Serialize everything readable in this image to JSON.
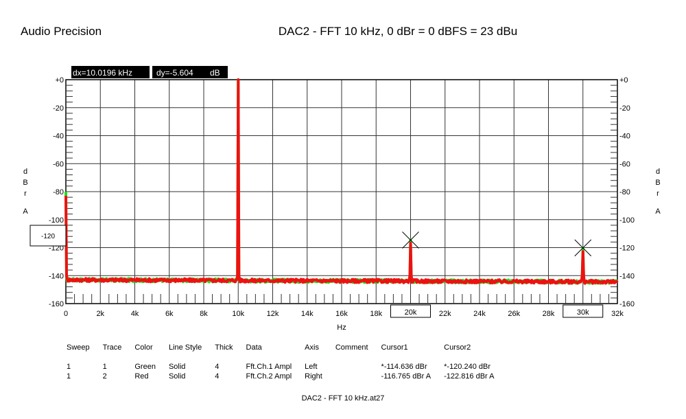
{
  "header": {
    "brand": "Audio Precision",
    "title": "DAC2 - FFT 10 kHz, 0 dBr = 0 dBFS = 23 dBu"
  },
  "readout": {
    "dx": "dx=10.0196 kHz",
    "dy": "dy=-5.604",
    "dy_unit": "dB"
  },
  "axes": {
    "left_unit": [
      "d",
      "B",
      "r"
    ],
    "left_weight": "A",
    "right_unit": [
      "d",
      "B",
      "r"
    ],
    "right_weight": "A",
    "xlabel": "Hz"
  },
  "chart_data": {
    "type": "line",
    "xlabel": "Hz",
    "ylabel": "dBr A",
    "xlim": [
      0,
      32000
    ],
    "ylim": [
      -160,
      0
    ],
    "x_ticks": [
      "0",
      "2k",
      "4k",
      "6k",
      "8k",
      "10k",
      "12k",
      "14k",
      "16k",
      "18k",
      "20k",
      "22k",
      "24k",
      "26k",
      "28k",
      "30k",
      "32k"
    ],
    "y_ticks_left": [
      "+0",
      "-20",
      "-40",
      "-60",
      "-80",
      "-100",
      "-120",
      "-140",
      "-160"
    ],
    "y_ticks_right": [
      "+0",
      "-20",
      "-40",
      "-60",
      "-80",
      "-100",
      "-120",
      "-140",
      "-160"
    ],
    "grid": true,
    "series": [
      {
        "name": "Ft.Ch.1 Ampl",
        "color": "#22dd22",
        "noise_floor": -143,
        "peaks": [
          {
            "x": 0,
            "y": -80
          },
          {
            "x": 10000,
            "y": 0
          },
          {
            "x": 20000,
            "y": -114.6
          },
          {
            "x": 30000,
            "y": -120.2
          }
        ]
      },
      {
        "name": "Ft.Ch.2 Ampl",
        "color": "#ee1111",
        "noise_floor": -143,
        "peaks": [
          {
            "x": 0,
            "y": -83
          },
          {
            "x": 10000,
            "y": 0
          },
          {
            "x": 20000,
            "y": -116.8
          },
          {
            "x": 30000,
            "y": -122.8
          }
        ]
      }
    ],
    "cursors": [
      {
        "x": 20000,
        "y": -114.6,
        "label": "20k"
      },
      {
        "x": 30000,
        "y": -120.2,
        "label": "30k"
      }
    ],
    "left_box_label": "-120"
  },
  "legend": {
    "headers": [
      "Sweep",
      "Trace",
      "Color",
      "Line Style",
      "Thick",
      "Data",
      "Axis",
      "Comment",
      "Cursor1",
      "Cursor2"
    ],
    "rows": [
      [
        "1",
        "1",
        "Green",
        "Solid",
        "4",
        "Fft.Ch.1 Ampl",
        "Left",
        "",
        "*-114.636 dBr",
        "*-120.240 dBr"
      ],
      [
        "1",
        "2",
        "Red",
        "Solid",
        "4",
        "Fft.Ch.2 Ampl",
        "Right",
        "",
        "-116.765 dBr A",
        "-122.816 dBr A"
      ]
    ]
  },
  "footer": "DAC2 - FFT 10 kHz.at27"
}
